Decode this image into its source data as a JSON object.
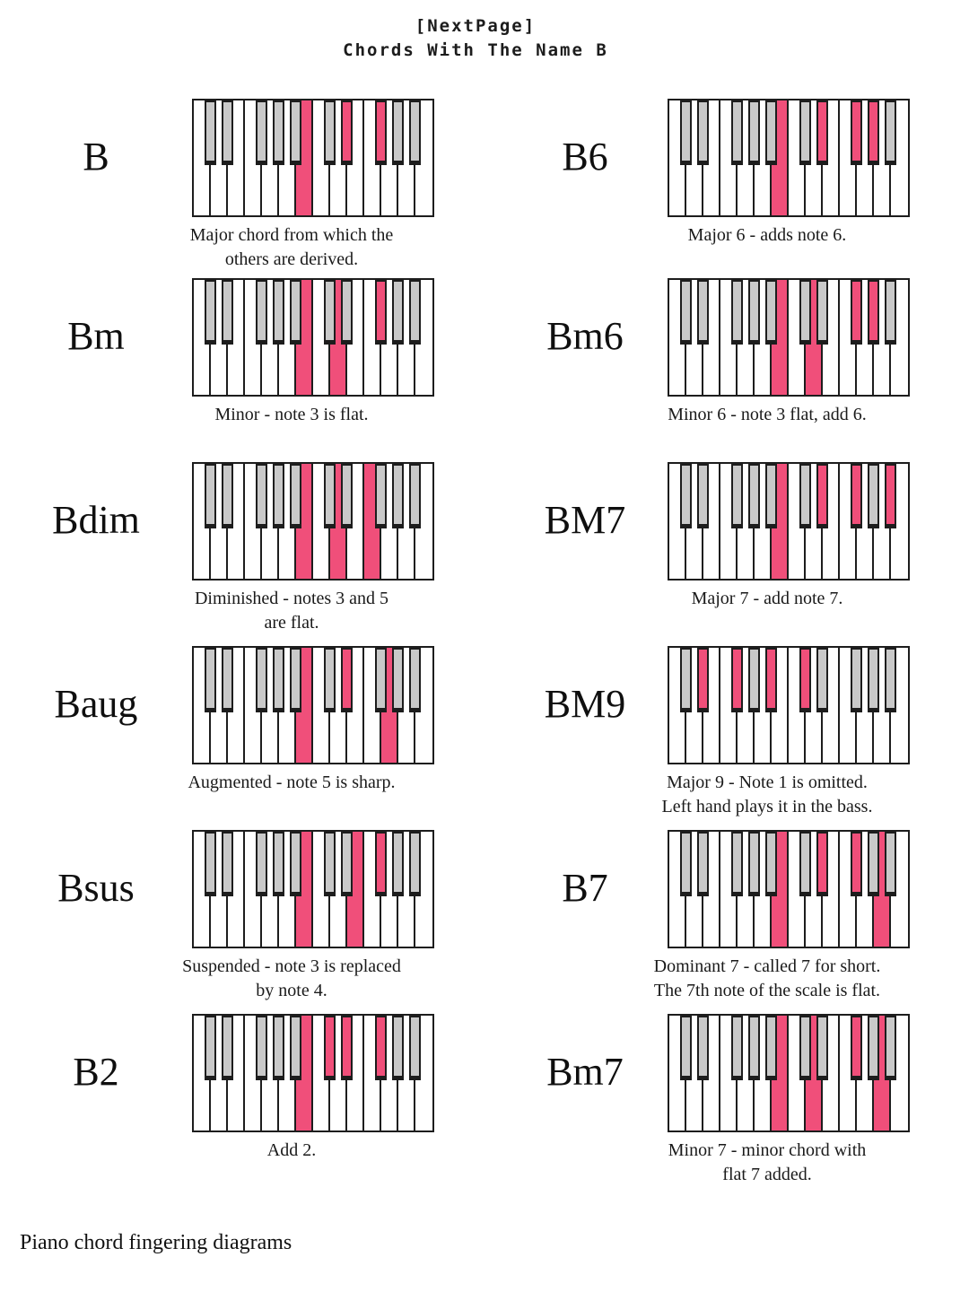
{
  "page": {
    "title_line1": "[NextPage]",
    "title_line2": "Chords With The Name B",
    "footer": "Piano chord fingering diagrams"
  },
  "colors": {
    "highlight_pink": "#f04f7a",
    "black_key_gray": "#c9c9c9",
    "outline": "#1d1d1d"
  },
  "keyboard_layout": {
    "white_keys_per_diagram": 14,
    "white_key_names": [
      "C1",
      "D1",
      "E1",
      "F1",
      "G1",
      "A1",
      "B1",
      "C2",
      "D2",
      "E2",
      "F2",
      "G2",
      "A2",
      "B2"
    ],
    "black_key_names": [
      "C#1",
      "D#1",
      "F#1",
      "G#1",
      "A#1",
      "C#2",
      "D#2",
      "F#2",
      "G#2",
      "A#2"
    ],
    "black_key_boundaries": [
      1,
      2,
      4,
      5,
      6,
      8,
      9,
      11,
      12,
      13
    ]
  },
  "chords": [
    {
      "label": "B",
      "column": "left",
      "row": 0,
      "notes": [
        "B",
        "D#",
        "F#"
      ],
      "highlight_white": [
        6
      ],
      "highlight_black": [
        6,
        7
      ],
      "caption": [
        "Major chord from which the",
        "others are derived."
      ]
    },
    {
      "label": "B6",
      "column": "right",
      "row": 0,
      "notes": [
        "B",
        "D#",
        "F#",
        "G#"
      ],
      "highlight_white": [
        6
      ],
      "highlight_black": [
        6,
        7,
        8
      ],
      "caption": [
        "Major 6 - adds note 6."
      ]
    },
    {
      "label": "Bm",
      "column": "left",
      "row": 1,
      "notes": [
        "B",
        "D",
        "F#"
      ],
      "highlight_white": [
        6,
        8
      ],
      "highlight_black": [
        7
      ],
      "caption": [
        "Minor - note 3 is flat."
      ]
    },
    {
      "label": "Bm6",
      "column": "right",
      "row": 1,
      "notes": [
        "B",
        "D",
        "F#",
        "G#"
      ],
      "highlight_white": [
        6,
        8
      ],
      "highlight_black": [
        7,
        8
      ],
      "caption": [
        "Minor 6 - note 3 flat, add 6."
      ]
    },
    {
      "label": "Bdim",
      "column": "left",
      "row": 2,
      "notes": [
        "B",
        "D",
        "F"
      ],
      "highlight_white": [
        6,
        8,
        10
      ],
      "highlight_black": [],
      "caption": [
        "Diminished - notes 3 and 5",
        "are flat."
      ]
    },
    {
      "label": "BM7",
      "column": "right",
      "row": 2,
      "notes": [
        "B",
        "D#",
        "F#",
        "A#"
      ],
      "highlight_white": [
        6
      ],
      "highlight_black": [
        6,
        7,
        9
      ],
      "caption": [
        "Major 7 - add note 7."
      ]
    },
    {
      "label": "Baug",
      "column": "left",
      "row": 3,
      "notes": [
        "B",
        "D#",
        "G"
      ],
      "highlight_white": [
        6,
        11
      ],
      "highlight_black": [
        6
      ],
      "caption": [
        "Augmented - note 5 is sharp."
      ]
    },
    {
      "label": "BM9",
      "column": "right",
      "row": 3,
      "notes": [
        "D#",
        "F#",
        "A#",
        "C#"
      ],
      "highlight_white": [],
      "highlight_black": [
        1,
        2,
        4,
        5
      ],
      "caption": [
        "Major 9 - Note 1 is omitted.",
        "Left hand plays it in the bass."
      ]
    },
    {
      "label": "Bsus",
      "column": "left",
      "row": 4,
      "notes": [
        "B",
        "E",
        "F#"
      ],
      "highlight_white": [
        6,
        9
      ],
      "highlight_black": [
        7
      ],
      "caption": [
        "Suspended - note 3 is replaced",
        "by note 4."
      ]
    },
    {
      "label": "B7",
      "column": "right",
      "row": 4,
      "notes": [
        "B",
        "D#",
        "F#",
        "A"
      ],
      "highlight_white": [
        6,
        12
      ],
      "highlight_black": [
        6,
        7
      ],
      "caption": [
        "Dominant 7 - called 7 for short.",
        "The 7th note of the scale is flat."
      ]
    },
    {
      "label": "B2",
      "column": "left",
      "row": 5,
      "notes": [
        "B",
        "C#",
        "D#",
        "F#"
      ],
      "highlight_white": [
        6
      ],
      "highlight_black": [
        5,
        6,
        7
      ],
      "caption": [
        "Add 2."
      ]
    },
    {
      "label": "Bm7",
      "column": "right",
      "row": 5,
      "notes": [
        "B",
        "D",
        "F#",
        "A"
      ],
      "highlight_white": [
        6,
        8,
        12
      ],
      "highlight_black": [
        7
      ],
      "caption": [
        "Minor 7 - minor chord with",
        "flat 7 added."
      ]
    }
  ]
}
